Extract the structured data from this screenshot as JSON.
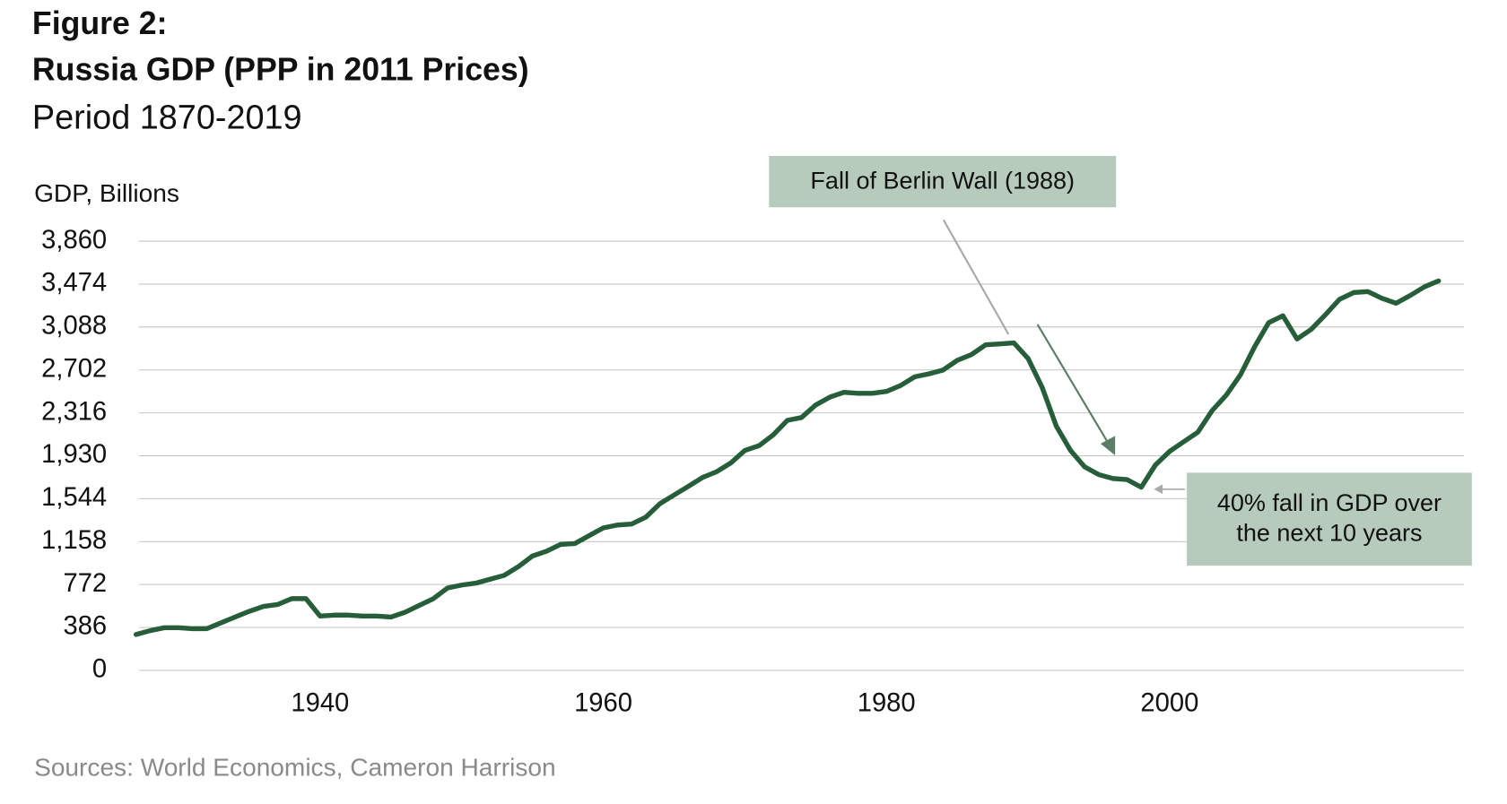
{
  "chart_data": {
    "type": "line",
    "title": "Figure 2:",
    "subtitle_bold": "Russia GDP (PPP in 2011 Prices)",
    "subtitle": "Period 1870-2019",
    "y_label": "GDP, Billions",
    "source": "Sources: World Economics, Cameron Harrison",
    "annotations": [
      {
        "text": "Fall of Berlin Wall (1988)"
      },
      {
        "lines": [
          "40% fall in GDP over",
          "the next 10 years"
        ]
      }
    ],
    "x": [
      1927,
      1928,
      1929,
      1930,
      1931,
      1932,
      1933,
      1934,
      1935,
      1936,
      1937,
      1938,
      1939,
      1940,
      1941,
      1942,
      1943,
      1944,
      1945,
      1946,
      1947,
      1948,
      1949,
      1950,
      1951,
      1952,
      1953,
      1954,
      1955,
      1956,
      1957,
      1958,
      1959,
      1960,
      1961,
      1962,
      1963,
      1964,
      1965,
      1966,
      1967,
      1968,
      1969,
      1970,
      1971,
      1972,
      1973,
      1974,
      1975,
      1976,
      1977,
      1978,
      1979,
      1980,
      1981,
      1982,
      1983,
      1984,
      1985,
      1986,
      1987,
      1988,
      1989,
      1990,
      1991,
      1992,
      1993,
      1994,
      1995,
      1996,
      1997,
      1998,
      1999,
      2000,
      2001,
      2002,
      2003,
      2004,
      2005,
      2006,
      2007,
      2008,
      2009,
      2010,
      2011,
      2012,
      2013,
      2014,
      2015,
      2016,
      2017,
      2018,
      2019
    ],
    "series": [
      {
        "name": "Russia GDP",
        "color": "#275e3a",
        "values": [
          322,
          357,
          383,
          383,
          375,
          375,
          427,
          479,
          531,
          575,
          592,
          645,
          645,
          488,
          497,
          497,
          488,
          488,
          479,
          523,
          584,
          645,
          741,
          767,
          784,
          819,
          854,
          932,
          1028,
          1072,
          1133,
          1141,
          1211,
          1281,
          1307,
          1316,
          1377,
          1499,
          1577,
          1655,
          1734,
          1786,
          1865,
          1978,
          2021,
          2117,
          2248,
          2274,
          2387,
          2457,
          2501,
          2492,
          2492,
          2509,
          2562,
          2640,
          2666,
          2701,
          2788,
          2840,
          2928,
          2936,
          2945,
          2806,
          2544,
          2196,
          1978,
          1830,
          1760,
          1725,
          1716,
          1647,
          1847,
          1969,
          2056,
          2143,
          2335,
          2475,
          2657,
          2910,
          3128,
          3189,
          2980,
          3067,
          3198,
          3337,
          3398,
          3407,
          3346,
          3302,
          3372,
          3450,
          3503
        ]
      }
    ],
    "xlim": [
      1927.2,
      2020.8
    ],
    "xticks": [
      1940,
      1960,
      1980,
      2000
    ],
    "ylim": [
      0,
      3860
    ],
    "yticks": [
      0,
      386,
      772,
      {
        "value": 1158,
        "label": "1,158"
      },
      {
        "value": 1544,
        "label": "1,544"
      },
      {
        "value": 1930,
        "label": "1,930"
      },
      {
        "value": 2316,
        "label": "2,316"
      },
      {
        "value": 2702,
        "label": "2,702"
      },
      {
        "value": 3088,
        "label": "3,088"
      },
      {
        "value": 3474,
        "label": "3,474"
      },
      {
        "value": 3860,
        "label": "3,860"
      }
    ],
    "grid": true
  }
}
